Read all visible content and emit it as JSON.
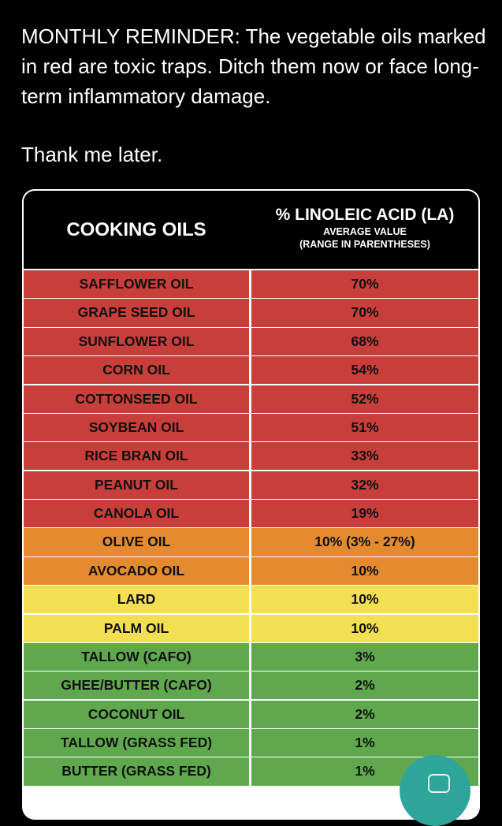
{
  "post": {
    "text": "MONTHLY REMINDER: The vegetable oils marked in red are toxic traps. Ditch them now or face long-term inflammatory damage.",
    "signoff": "Thank me later."
  },
  "table": {
    "col1_header": "COOKING OILS",
    "col2_header": "% LINOLEIC ACID (LA)",
    "col2_sub1": "AVERAGE VALUE",
    "col2_sub2": "(RANGE IN PARENTHESES)",
    "row_colors": {
      "red": "#c83e3a",
      "orange": "#e38b2e",
      "yellow": "#f2df52",
      "green": "#5fa84e"
    },
    "rows": [
      {
        "oil": "SAFFLOWER OIL",
        "la": "70%",
        "color": "red"
      },
      {
        "oil": "GRAPE SEED OIL",
        "la": "70%",
        "color": "red"
      },
      {
        "oil": "SUNFLOWER OIL",
        "la": "68%",
        "color": "red"
      },
      {
        "oil": "CORN OIL",
        "la": "54%",
        "color": "red"
      },
      {
        "oil": "COTTONSEED OIL",
        "la": "52%",
        "color": "red"
      },
      {
        "oil": "SOYBEAN OIL",
        "la": "51%",
        "color": "red"
      },
      {
        "oil": "RICE BRAN OIL",
        "la": "33%",
        "color": "red"
      },
      {
        "oil": "PEANUT OIL",
        "la": "32%",
        "color": "red"
      },
      {
        "oil": "CANOLA OIL",
        "la": "19%",
        "color": "red"
      },
      {
        "oil": "OLIVE OIL",
        "la": "10% (3% - 27%)",
        "color": "orange"
      },
      {
        "oil": "AVOCADO OIL",
        "la": "10%",
        "color": "orange"
      },
      {
        "oil": "LARD",
        "la": "10%",
        "color": "yellow"
      },
      {
        "oil": "PALM OIL",
        "la": "10%",
        "color": "yellow"
      },
      {
        "oil": "TALLOW (CAFO)",
        "la": "3%",
        "color": "green"
      },
      {
        "oil": "GHEE/BUTTER (CAFO)",
        "la": "2%",
        "color": "green"
      },
      {
        "oil": "COCONUT OIL",
        "la": "2%",
        "color": "green"
      },
      {
        "oil": "TALLOW (GRASS FED)",
        "la": "1%",
        "color": "green"
      },
      {
        "oil": "BUTTER (GRASS FED)",
        "la": "1%",
        "color": "green"
      }
    ]
  },
  "fab": {
    "icon": "compose-icon",
    "color": "#2ea59a"
  }
}
